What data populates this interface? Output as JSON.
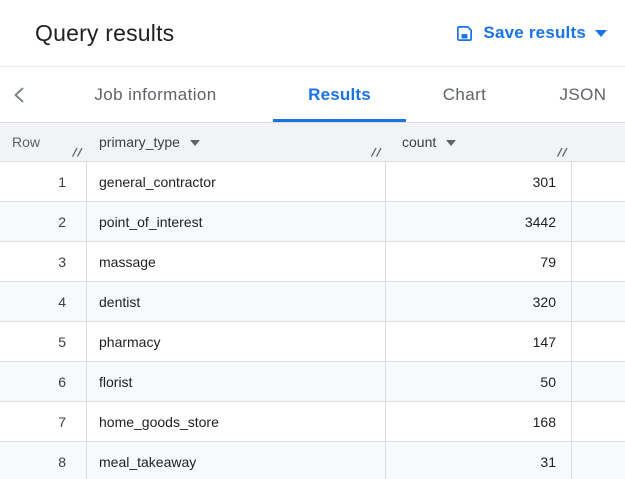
{
  "header": {
    "title": "Query results",
    "save_button": {
      "label": "Save results",
      "icon": "save-icon",
      "caret_icon": "caret-down-icon"
    }
  },
  "tabbar": {
    "back_icon": "chevron-left-icon",
    "tabs": [
      {
        "label": "Job information",
        "active": false
      },
      {
        "label": "Results",
        "active": true
      },
      {
        "label": "Chart",
        "active": false
      },
      {
        "label": "JSON",
        "active": false
      }
    ]
  },
  "table": {
    "columns": [
      {
        "label": "Row",
        "sortable": false,
        "align": "right"
      },
      {
        "label": "primary_type",
        "sortable": true,
        "align": "left"
      },
      {
        "label": "count",
        "sortable": true,
        "align": "right"
      }
    ],
    "rows": [
      {
        "row": "1",
        "primary_type": "general_contractor",
        "count": "301"
      },
      {
        "row": "2",
        "primary_type": "point_of_interest",
        "count": "3442"
      },
      {
        "row": "3",
        "primary_type": "massage",
        "count": "79"
      },
      {
        "row": "4",
        "primary_type": "dentist",
        "count": "320"
      },
      {
        "row": "5",
        "primary_type": "pharmacy",
        "count": "147"
      },
      {
        "row": "6",
        "primary_type": "florist",
        "count": "50"
      },
      {
        "row": "7",
        "primary_type": "home_goods_store",
        "count": "168"
      },
      {
        "row": "8",
        "primary_type": "meal_takeaway",
        "count": "31"
      }
    ]
  },
  "colors": {
    "accent_blue": "#1a73e8",
    "text_dark": "#202124",
    "text_gray": "#5f6368",
    "table_header_bg": "#f1f3f4",
    "row_alt_bg": "#f8f9fa",
    "border": "#dadce0"
  }
}
